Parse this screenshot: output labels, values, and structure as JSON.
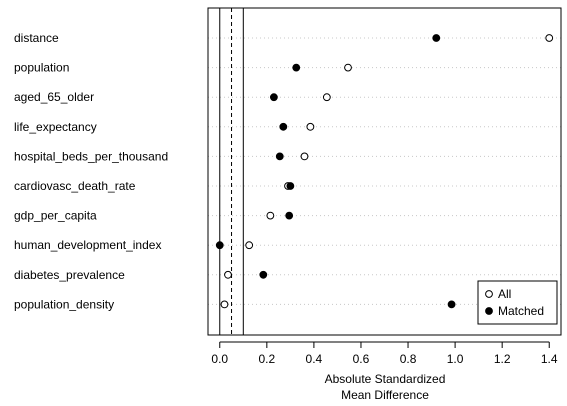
{
  "chart_data": {
    "type": "scatter",
    "title": "",
    "xlabel_lines": [
      "Absolute Standardized",
      "Mean Difference"
    ],
    "xlim": [
      -0.05,
      1.45
    ],
    "xticks": [
      0.0,
      0.2,
      0.4,
      0.6,
      0.8,
      1.0,
      1.2,
      1.4
    ],
    "xtick_labels": [
      "0.0",
      "0.2",
      "0.4",
      "0.6",
      "0.8",
      "1.0",
      "1.2",
      "1.4"
    ],
    "reference_lines": [
      {
        "value": 0.0,
        "style": "solid"
      },
      {
        "value": 0.05,
        "style": "dashed"
      },
      {
        "value": 0.1,
        "style": "solid"
      }
    ],
    "categories": [
      "distance",
      "population",
      "aged_65_older",
      "life_expectancy",
      "hospital_beds_per_thousand",
      "cardiovasc_death_rate",
      "gdp_per_capita",
      "human_development_index",
      "diabetes_prevalence",
      "population_density"
    ],
    "series": [
      {
        "name": "All",
        "marker": "open-circle",
        "values": [
          1.4,
          0.545,
          0.455,
          0.385,
          0.36,
          0.29,
          0.215,
          0.125,
          0.035,
          0.02
        ]
      },
      {
        "name": "Matched",
        "marker": "filled-circle",
        "values": [
          0.92,
          0.325,
          0.23,
          0.27,
          0.255,
          0.3,
          0.295,
          0.0,
          0.185,
          0.985
        ]
      }
    ],
    "legend_position": "bottom-right",
    "grid": "dotted horizontal guide per row"
  }
}
